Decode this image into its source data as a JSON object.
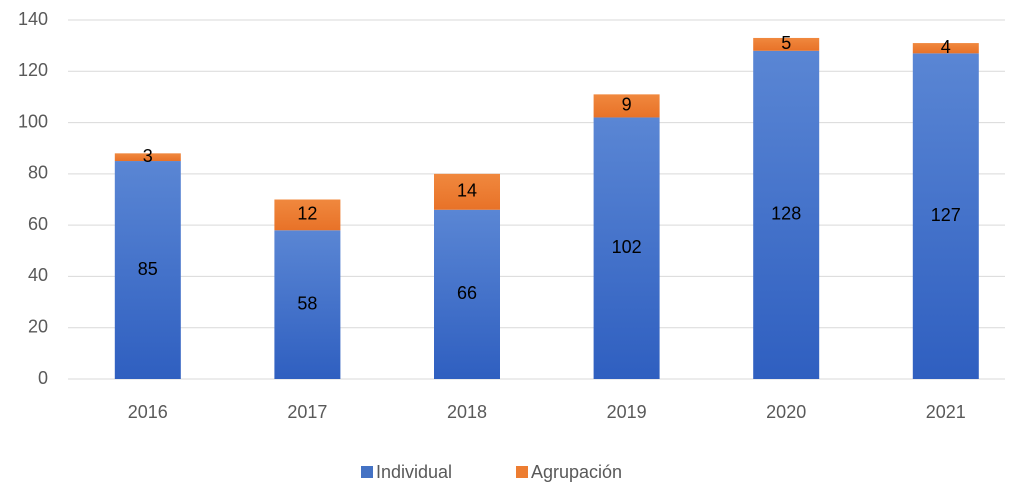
{
  "chart_data": {
    "type": "stacked_bar",
    "categories": [
      "2016",
      "2017",
      "2018",
      "2019",
      "2020",
      "2021"
    ],
    "series": [
      {
        "name": "Individual",
        "color": "#4472c4",
        "values": [
          85,
          58,
          66,
          102,
          128,
          127
        ]
      },
      {
        "name": "Agrupación",
        "color": "#ed7d31",
        "values": [
          3,
          12,
          14,
          9,
          5,
          4
        ]
      }
    ],
    "ylim": [
      0,
      140
    ],
    "yticks": [
      0,
      20,
      40,
      60,
      80,
      100,
      120,
      140
    ],
    "grid": true,
    "legend": "bottom"
  }
}
